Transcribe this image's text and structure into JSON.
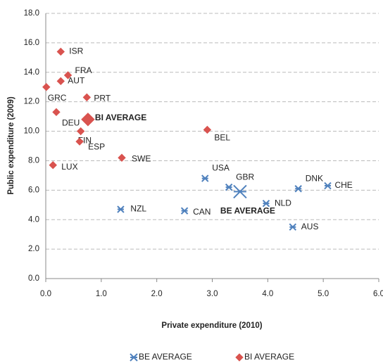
{
  "chart_data": {
    "type": "scatter",
    "x_label": "Private expenditure (2010)",
    "y_label": "Public expenditure (2009)",
    "xlim": [
      0,
      6
    ],
    "ylim": [
      0,
      18
    ],
    "xticks": [
      {
        "value": 0,
        "label": "0.0"
      },
      {
        "value": 1,
        "label": "1.0"
      },
      {
        "value": 2,
        "label": "2.0"
      },
      {
        "value": 3,
        "label": "3.0"
      },
      {
        "value": 4,
        "label": "4.0"
      },
      {
        "value": 5,
        "label": "5.0"
      },
      {
        "value": 6,
        "label": "6.0"
      }
    ],
    "yticks": [
      {
        "value": 0,
        "label": "0.0"
      },
      {
        "value": 2,
        "label": "2.0"
      },
      {
        "value": 4,
        "label": "4.0"
      },
      {
        "value": 6,
        "label": "6.0"
      },
      {
        "value": 8,
        "label": "8.0"
      },
      {
        "value": 10,
        "label": "10.0"
      },
      {
        "value": 12,
        "label": "12.0"
      },
      {
        "value": 14,
        "label": "14.0"
      },
      {
        "value": 16,
        "label": "16.0"
      },
      {
        "value": 18,
        "label": "18.0"
      }
    ],
    "grid": true,
    "legend": "bottom",
    "series": [
      {
        "name": "BE AVERAGE",
        "color": "#4f81bd",
        "marker": "asterisk",
        "labels": [
          "USA",
          "GBR",
          "BE AVERAGE",
          "DNK",
          "CHE",
          "NLD",
          "AUS",
          "NZL",
          "CAN"
        ],
        "x": [
          2.87,
          3.3,
          3.5,
          4.55,
          5.08,
          3.97,
          4.45,
          1.35,
          2.5
        ],
        "values": [
          6.8,
          6.2,
          5.9,
          6.1,
          6.3,
          5.1,
          3.5,
          4.7,
          4.6
        ]
      },
      {
        "name": "BI AVERAGE",
        "color": "#d9534f",
        "marker": "diamond",
        "labels": [
          "ISR",
          "FRA",
          "AUT",
          "GRC",
          "PRT",
          "DEU",
          "BI AVERAGE",
          "FIN",
          "ESP",
          "SWE",
          "LUX",
          "BEL"
        ],
        "x": [
          0.27,
          0.4,
          0.27,
          0.01,
          0.74,
          0.19,
          0.76,
          0.63,
          0.61,
          1.37,
          0.13,
          2.91
        ],
        "values": [
          15.4,
          13.8,
          13.4,
          13.0,
          12.3,
          11.3,
          10.8,
          10.0,
          9.3,
          8.2,
          7.7,
          10.1
        ]
      }
    ]
  }
}
